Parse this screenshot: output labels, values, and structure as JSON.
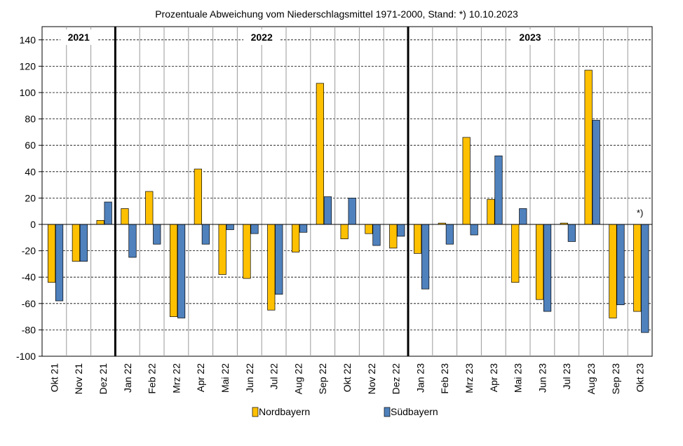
{
  "chart_data": {
    "type": "bar",
    "title": "Prozentuale Abweichung vom Niederschlagsmittel 1971-2000,  Stand: *) 10.10.2023",
    "xlabel": "",
    "ylabel": "",
    "ylim": [
      -100,
      150
    ],
    "yticks": [
      -100,
      -80,
      -60,
      -40,
      -20,
      0,
      20,
      40,
      60,
      80,
      100,
      120,
      140
    ],
    "grid": true,
    "legend_position": "bottom",
    "categories": [
      "Okt 21",
      "Nov 21",
      "Dez 21",
      "Jan 22",
      "Feb 22",
      "Mrz 22",
      "Apr 22",
      "Mai 22",
      "Jun 22",
      "Jul 22",
      "Aug 22",
      "Sep 22",
      "Okt 22",
      "Nov 22",
      "Dez 22",
      "Jan 23",
      "Feb 23",
      "Mrz 23",
      "Apr 23",
      "Mai 23",
      "Jun 23",
      "Jul 23",
      "Aug 23",
      "Sep 23",
      "Okt 23"
    ],
    "series": [
      {
        "name": "Nordbayern",
        "color": "#FFC000",
        "values": [
          -44,
          -28,
          3,
          12,
          25,
          -70,
          42,
          -38,
          -41,
          -65,
          -21,
          107,
          -11,
          -7,
          -18,
          -22,
          1,
          66,
          19,
          -44,
          -57,
          1,
          117,
          -71,
          -66
        ]
      },
      {
        "name": "Südbayern",
        "color": "#4F81BD",
        "values": [
          -58,
          -28,
          17,
          -25,
          -15,
          -71,
          -15,
          -4,
          -7,
          -53,
          -6,
          21,
          20,
          -16,
          -9,
          -49,
          -15,
          -8,
          52,
          12,
          -66,
          -13,
          79,
          -61,
          -82
        ]
      }
    ],
    "year_groups": [
      {
        "label": "2021",
        "start_index": 0
      },
      {
        "label": "2022",
        "start_index": 3
      },
      {
        "label": "2023",
        "start_index": 15
      }
    ],
    "annotations": [
      {
        "text": "*)",
        "category": "Okt 23"
      }
    ]
  }
}
